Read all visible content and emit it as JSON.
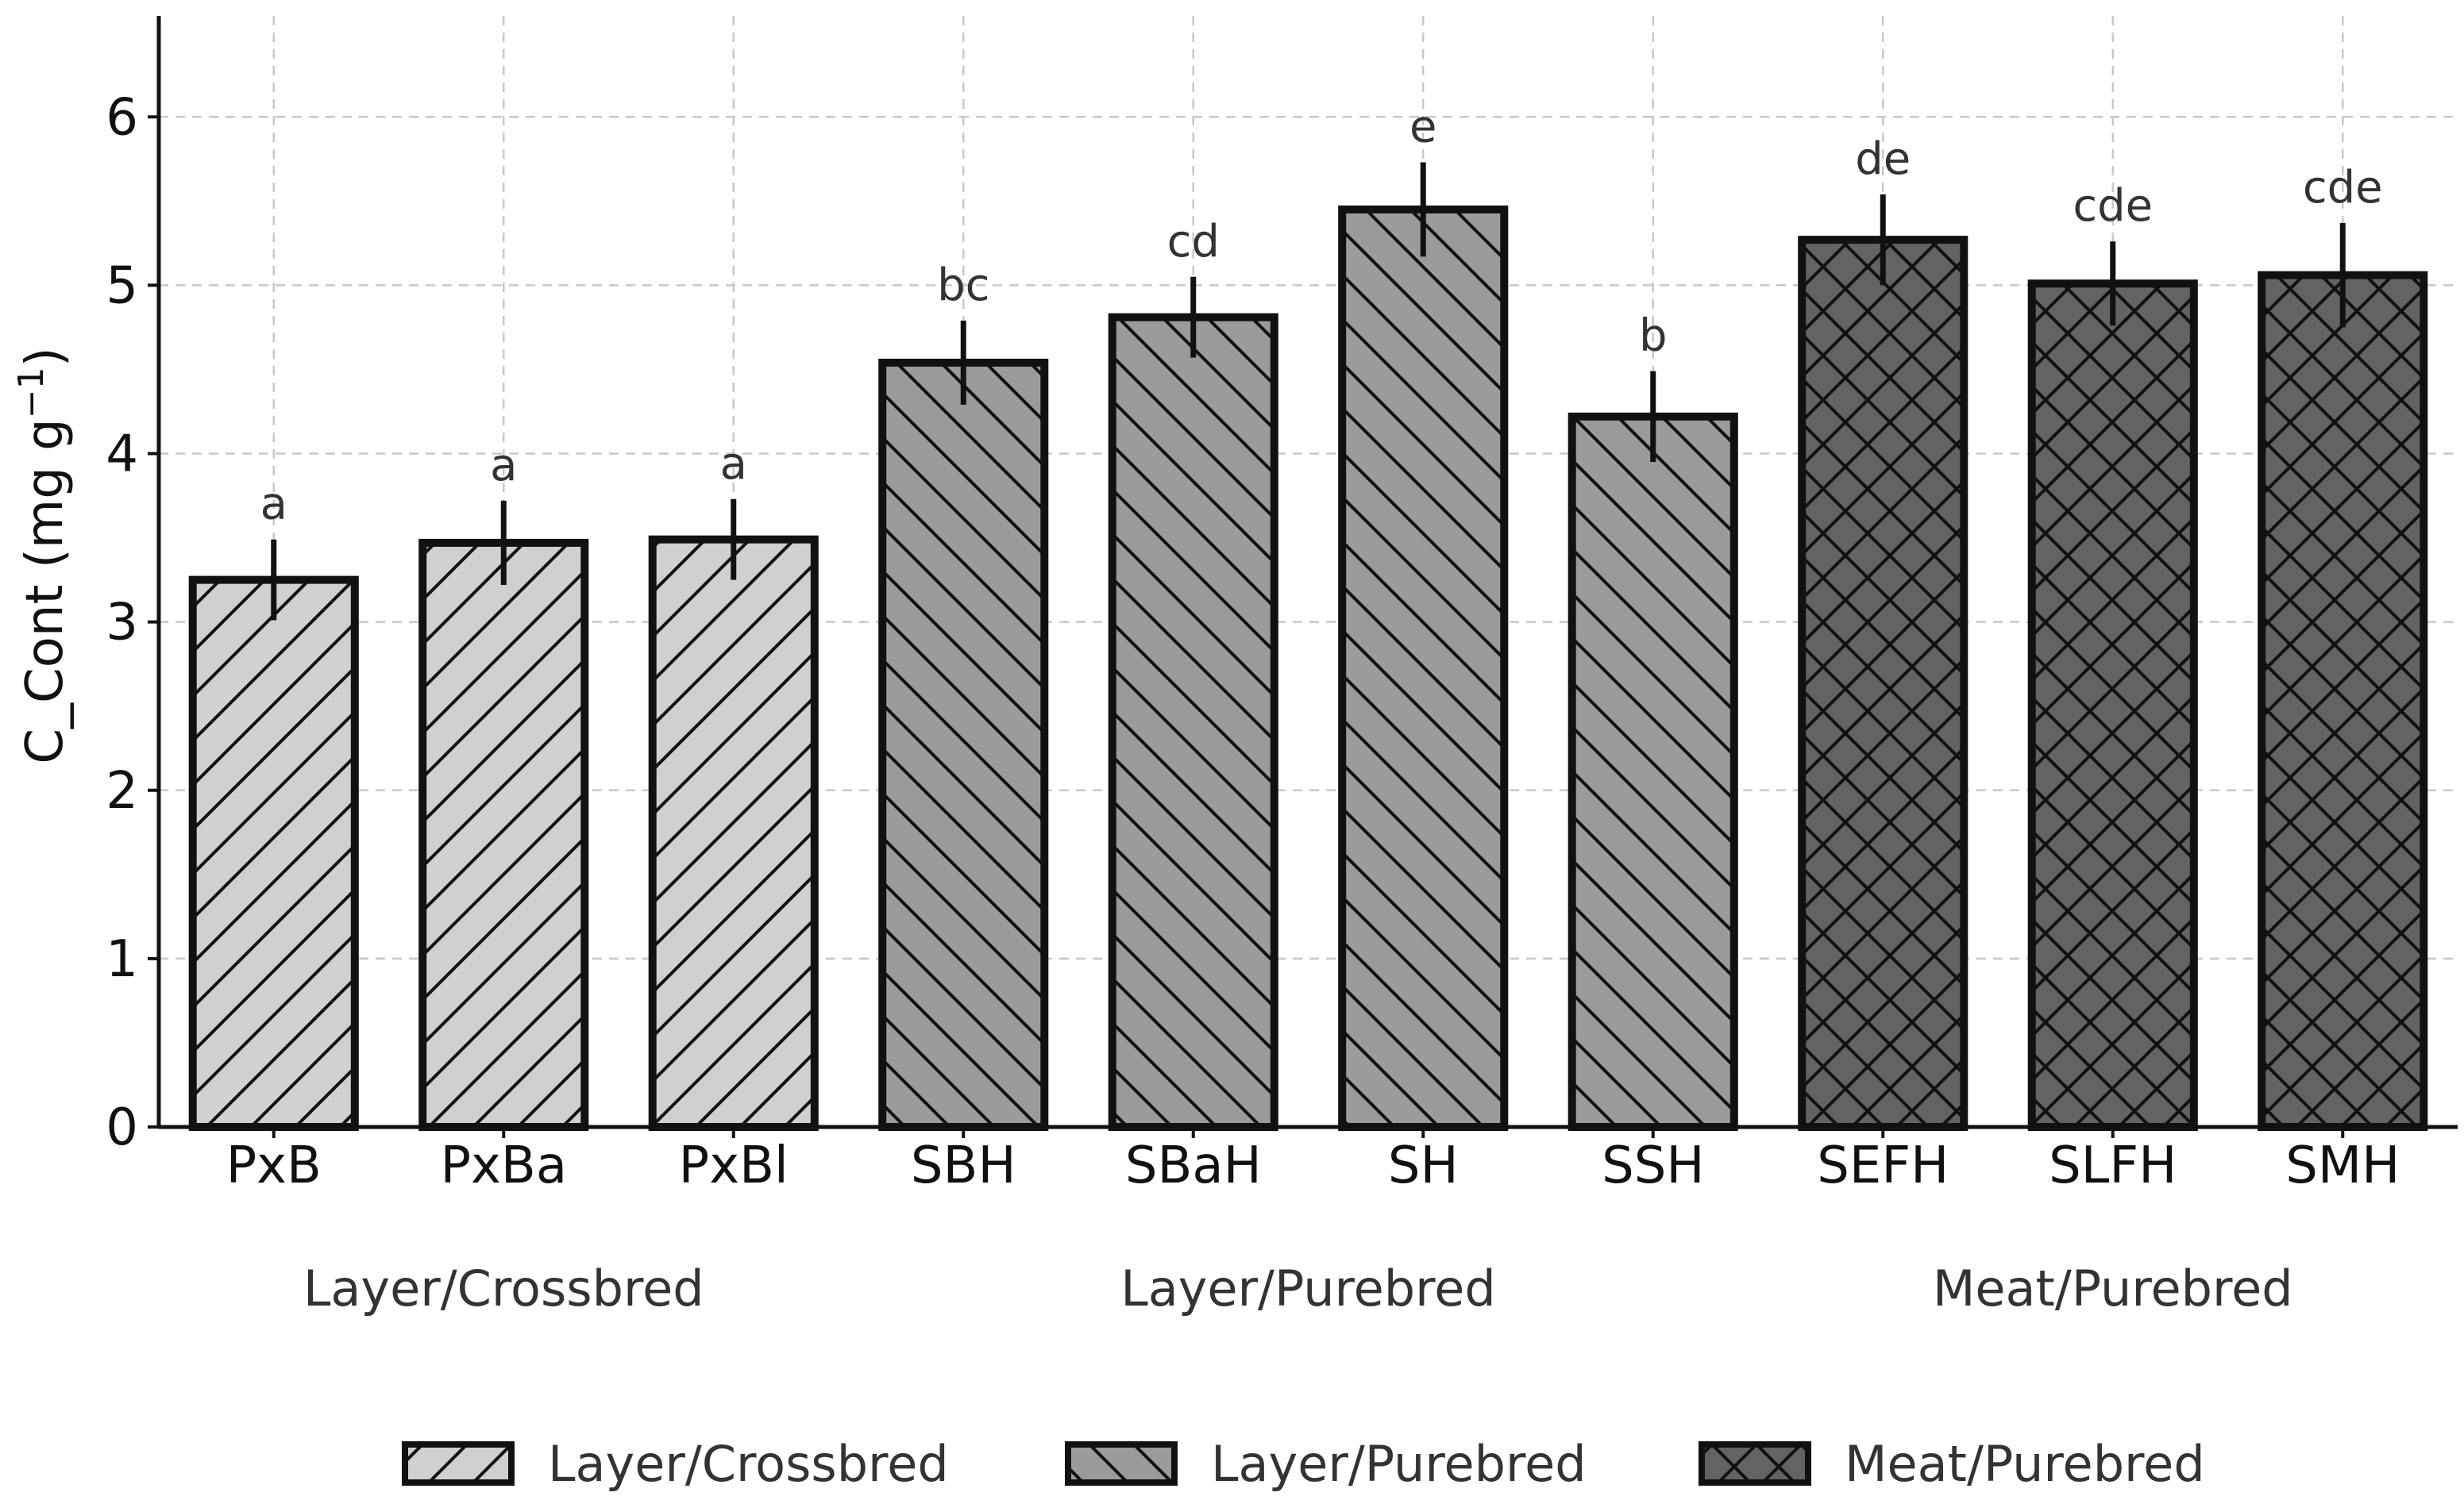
{
  "chart_data": {
    "type": "bar",
    "title": "",
    "xlabel": "",
    "ylabel": "C_Cont (mg g",
    "ylabel_sup": "−1",
    "ylabel_close": ")",
    "ylim": [
      0,
      6.6
    ],
    "yticks": [
      0,
      1,
      2,
      3,
      4,
      5,
      6
    ],
    "grid": true,
    "legend_position": "bottom",
    "groups": [
      {
        "name": "Layer/Crossbred",
        "color": "#d0d0d0",
        "hatch": "forward"
      },
      {
        "name": "Layer/Purebred",
        "color": "#9b9b9b",
        "hatch": "back"
      },
      {
        "name": "Meat/Purebred",
        "color": "#636363",
        "hatch": "cross"
      }
    ],
    "categories": [
      "PxB",
      "PxBa",
      "PxBl",
      "SBH",
      "SBaH",
      "SH",
      "SSH",
      "SEFH",
      "SLFH",
      "SMH"
    ],
    "values": [
      3.25,
      3.47,
      3.49,
      4.54,
      4.81,
      5.45,
      4.22,
      5.27,
      5.01,
      5.06
    ],
    "errors": [
      0.24,
      0.25,
      0.24,
      0.25,
      0.24,
      0.28,
      0.27,
      0.27,
      0.25,
      0.31
    ],
    "category_group": [
      0,
      0,
      0,
      1,
      1,
      1,
      1,
      2,
      2,
      2
    ],
    "significance": [
      "a",
      "a",
      "a",
      "bc",
      "cd",
      "e",
      "b",
      "de",
      "cde",
      "cde"
    ]
  }
}
